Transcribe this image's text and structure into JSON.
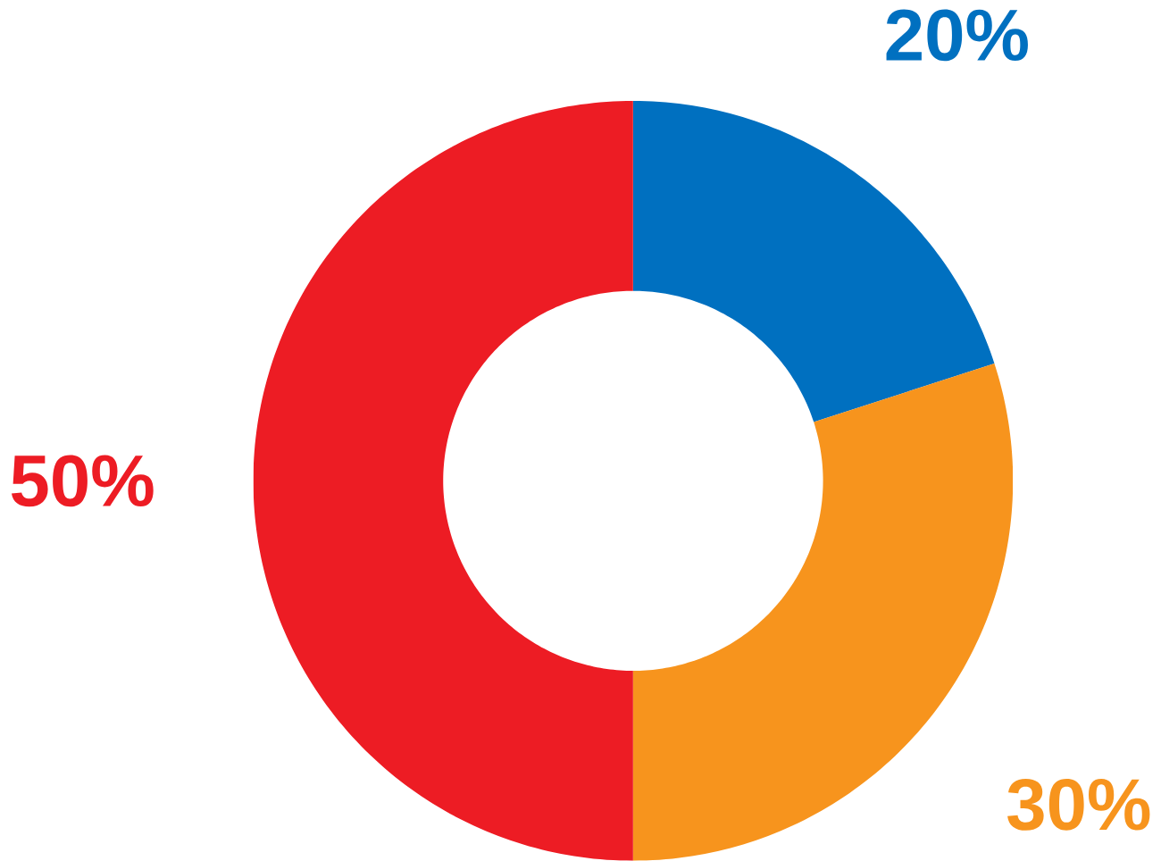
{
  "chart_data": {
    "type": "donut",
    "categories": [
      null,
      null,
      null
    ],
    "values": [
      20,
      30,
      50
    ],
    "colors": [
      "#0070c0",
      "#f7941d",
      "#ed1c24"
    ],
    "value_labels": [
      "20%",
      "30%",
      "50%"
    ]
  }
}
